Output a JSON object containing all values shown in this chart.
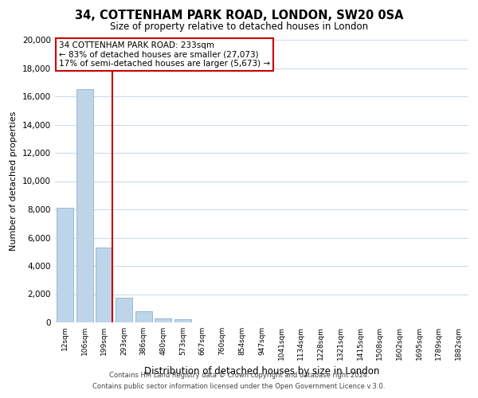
{
  "title": "34, COTTENHAM PARK ROAD, LONDON, SW20 0SA",
  "subtitle": "Size of property relative to detached houses in London",
  "xlabel": "Distribution of detached houses by size in London",
  "ylabel": "Number of detached properties",
  "bar_labels": [
    "12sqm",
    "106sqm",
    "199sqm",
    "293sqm",
    "386sqm",
    "480sqm",
    "573sqm",
    "667sqm",
    "760sqm",
    "854sqm",
    "947sqm",
    "1041sqm",
    "1134sqm",
    "1228sqm",
    "1321sqm",
    "1415sqm",
    "1508sqm",
    "1602sqm",
    "1695sqm",
    "1789sqm",
    "1882sqm"
  ],
  "bar_values": [
    8100,
    16500,
    5300,
    1750,
    800,
    280,
    200,
    0,
    0,
    0,
    0,
    0,
    0,
    0,
    0,
    0,
    0,
    0,
    0,
    0,
    0
  ],
  "bar_color": "#bed4e8",
  "bar_edge_color": "#9ab8d0",
  "vline_color": "#cc0000",
  "vline_x_idx": 2,
  "ylim": [
    0,
    20000
  ],
  "yticks": [
    0,
    2000,
    4000,
    6000,
    8000,
    10000,
    12000,
    14000,
    16000,
    18000,
    20000
  ],
  "annotation_title": "34 COTTENHAM PARK ROAD: 233sqm",
  "annotation_line1": "← 83% of detached houses are smaller (27,073)",
  "annotation_line2": "17% of semi-detached houses are larger (5,673) →",
  "annotation_box_color": "#ffffff",
  "annotation_box_edge": "#cc0000",
  "footer_line1": "Contains HM Land Registry data © Crown copyright and database right 2024.",
  "footer_line2": "Contains public sector information licensed under the Open Government Licence v.3.0.",
  "background_color": "#ffffff",
  "grid_color": "#ccdce8"
}
